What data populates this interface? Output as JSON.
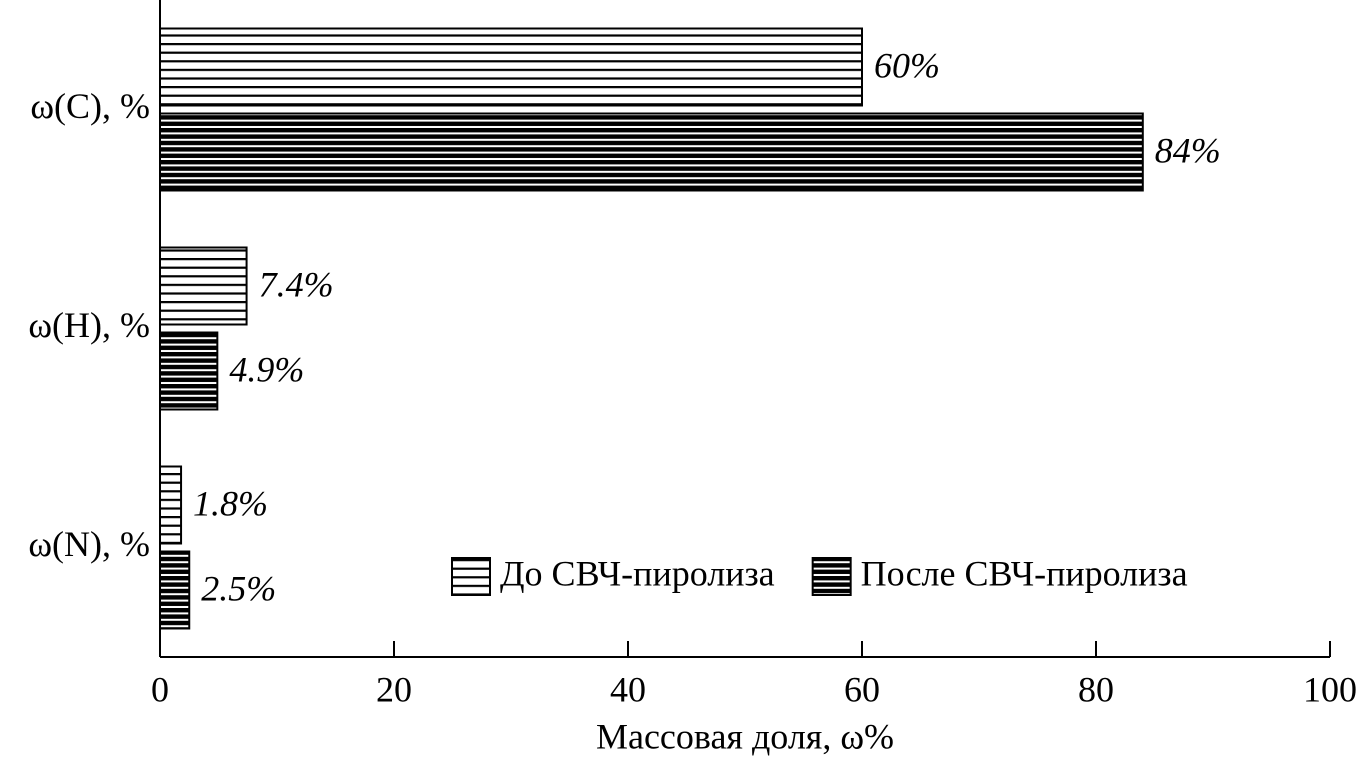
{
  "chart_data": {
    "type": "hbar",
    "categories": [
      "ω(C), %",
      "ω(H), %",
      "ω(N), %"
    ],
    "series": [
      {
        "name": "До СВЧ-пиролиза",
        "color": "#000000",
        "hatch": "sparse",
        "values": [
          60,
          7.4,
          1.8
        ],
        "value_labels": [
          "60%",
          "7.4%",
          "1.8%"
        ]
      },
      {
        "name": "После СВЧ-пиролиза",
        "color": "#000000",
        "hatch": "dense",
        "values": [
          84,
          4.9,
          2.5
        ],
        "value_labels": [
          "84%",
          "4.9%",
          "2.5%"
        ]
      }
    ],
    "x_label": "Массовая доля, ω%",
    "xlim": [
      0,
      100
    ],
    "xticks": [
      0,
      20,
      40,
      60,
      80,
      100
    ],
    "grid": false,
    "legend_loc": "lower right"
  }
}
